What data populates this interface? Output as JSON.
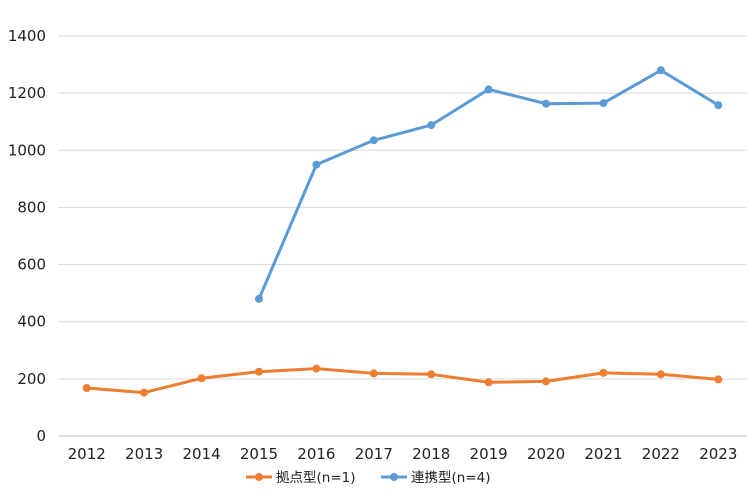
{
  "chart_data": {
    "type": "line",
    "title": "",
    "xlabel": "",
    "ylabel": "",
    "categories": [
      "2012",
      "2013",
      "2014",
      "2015",
      "2016",
      "2017",
      "2018",
      "2019",
      "2020",
      "2021",
      "2022",
      "2023"
    ],
    "ylim": [
      0,
      1400
    ],
    "yticks": [
      0,
      200,
      400,
      600,
      800,
      1000,
      1200,
      1400
    ],
    "grid": true,
    "legend_position": "bottom",
    "series": [
      {
        "name": "拠点型(n=1)",
        "color": "#ED7D31",
        "values": [
          168,
          152,
          202,
          225,
          236,
          219,
          216,
          188,
          191,
          221,
          216,
          198
        ]
      },
      {
        "name": "連携型(n=4)",
        "color": "#5B9BD5",
        "values": [
          null,
          null,
          null,
          480,
          950,
          1035,
          1088,
          1213,
          1163,
          1165,
          1280,
          1158
        ]
      }
    ]
  }
}
